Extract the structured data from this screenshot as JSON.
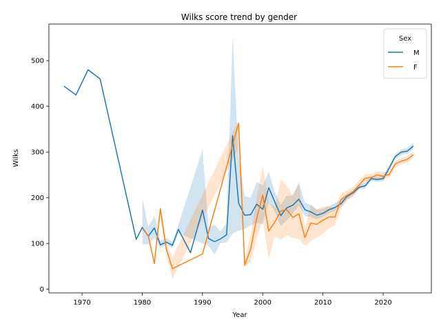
{
  "chart_data": {
    "type": "line",
    "title": "Wilks score trend by gender",
    "xlabel": "Year",
    "ylabel": "Wilks",
    "xlim": [
      1964.5,
      2028
    ],
    "ylim": [
      -8,
      580
    ],
    "xticks": [
      1970,
      1980,
      1990,
      2000,
      2010,
      2020
    ],
    "yticks": [
      0,
      100,
      200,
      300,
      400,
      500
    ],
    "grid": false,
    "legend": {
      "title": "Sex",
      "placement": "top-right"
    },
    "series": [
      {
        "name": "M",
        "color": "#1f77b4",
        "band_color": "#1f77b4",
        "points": [
          [
            1967,
            444
          ],
          [
            1969,
            425
          ],
          [
            1971,
            480
          ],
          [
            1973,
            460
          ],
          [
            1979,
            109
          ],
          [
            1980,
            135
          ],
          [
            1981,
            116
          ],
          [
            1982,
            134
          ],
          [
            1983,
            97
          ],
          [
            1984,
            103
          ],
          [
            1985,
            96
          ],
          [
            1986,
            131
          ],
          [
            1988,
            80
          ],
          [
            1990,
            173
          ],
          [
            1991,
            111
          ],
          [
            1992,
            104
          ],
          [
            1993,
            110
          ],
          [
            1994,
            119
          ],
          [
            1995,
            336
          ],
          [
            1996,
            188
          ],
          [
            1997,
            162
          ],
          [
            1998,
            163
          ],
          [
            1999,
            186
          ],
          [
            2000,
            175
          ],
          [
            2001,
            222
          ],
          [
            2002,
            191
          ],
          [
            2003,
            161
          ],
          [
            2004,
            178
          ],
          [
            2005,
            184
          ],
          [
            2006,
            197
          ],
          [
            2007,
            174
          ],
          [
            2008,
            169
          ],
          [
            2009,
            162
          ],
          [
            2010,
            166
          ],
          [
            2011,
            174
          ],
          [
            2012,
            179
          ],
          [
            2013,
            187
          ],
          [
            2014,
            203
          ],
          [
            2015,
            211
          ],
          [
            2016,
            223
          ],
          [
            2017,
            226
          ],
          [
            2018,
            242
          ],
          [
            2019,
            240
          ],
          [
            2020,
            242
          ],
          [
            2021,
            265
          ],
          [
            2022,
            290
          ],
          [
            2023,
            300
          ],
          [
            2024,
            302
          ],
          [
            2025,
            313
          ]
        ],
        "band": [
          [
            1980,
            98,
            200
          ],
          [
            1981,
            98,
            137
          ],
          [
            1982,
            112,
            160
          ],
          [
            1983,
            89,
            106
          ],
          [
            1984,
            97,
            113
          ],
          [
            1985,
            90,
            103
          ],
          [
            1986,
            123,
            141
          ],
          [
            1990,
            100,
            306
          ],
          [
            1991,
            95,
            135
          ],
          [
            1992,
            76,
            141
          ],
          [
            1993,
            101,
            127
          ],
          [
            1994,
            102,
            145
          ],
          [
            1995,
            122,
            554
          ],
          [
            1996,
            128,
            290
          ],
          [
            1997,
            132,
            204
          ],
          [
            1998,
            140,
            200
          ],
          [
            1999,
            145,
            235
          ],
          [
            2000,
            142,
            227
          ],
          [
            2001,
            190,
            257
          ],
          [
            2002,
            170,
            213
          ],
          [
            2003,
            138,
            185
          ],
          [
            2004,
            150,
            205
          ],
          [
            2005,
            166,
            205
          ],
          [
            2006,
            183,
            234
          ],
          [
            2007,
            160,
            189
          ],
          [
            2008,
            158,
            184
          ],
          [
            2009,
            152,
            174
          ],
          [
            2010,
            158,
            176
          ],
          [
            2011,
            166,
            182
          ],
          [
            2012,
            172,
            188
          ],
          [
            2013,
            180,
            196
          ],
          [
            2014,
            196,
            209
          ],
          [
            2015,
            205,
            217
          ],
          [
            2016,
            218,
            229
          ],
          [
            2017,
            220,
            232
          ],
          [
            2018,
            237,
            248
          ],
          [
            2019,
            235,
            246
          ],
          [
            2020,
            236,
            248
          ],
          [
            2021,
            259,
            271
          ],
          [
            2022,
            284,
            296
          ],
          [
            2023,
            294,
            306
          ],
          [
            2024,
            296,
            309
          ],
          [
            2025,
            306,
            320
          ]
        ]
      },
      {
        "name": "F",
        "color": "#ff7f0e",
        "band_color": "#ff7f0e",
        "points": [
          [
            1980,
            133
          ],
          [
            1981,
            117
          ],
          [
            1982,
            56
          ],
          [
            1983,
            176
          ],
          [
            1984,
            88
          ],
          [
            1985,
            45
          ],
          [
            1990,
            77
          ],
          [
            1996,
            363
          ],
          [
            1997,
            53
          ],
          [
            1998,
            88
          ],
          [
            1999,
            155
          ],
          [
            2000,
            206
          ],
          [
            2001,
            127
          ],
          [
            2002,
            147
          ],
          [
            2003,
            171
          ],
          [
            2004,
            174
          ],
          [
            2005,
            157
          ],
          [
            2006,
            165
          ],
          [
            2007,
            113
          ],
          [
            2008,
            145
          ],
          [
            2009,
            142
          ],
          [
            2010,
            151
          ],
          [
            2011,
            158
          ],
          [
            2012,
            158
          ],
          [
            2013,
            196
          ],
          [
            2014,
            205
          ],
          [
            2015,
            213
          ],
          [
            2016,
            228
          ],
          [
            2017,
            243
          ],
          [
            2018,
            244
          ],
          [
            2019,
            250
          ],
          [
            2020,
            247
          ],
          [
            2021,
            251
          ],
          [
            2022,
            274
          ],
          [
            2023,
            280
          ],
          [
            2024,
            284
          ],
          [
            2025,
            294
          ]
        ],
        "band": [
          [
            1983,
            150,
            190
          ],
          [
            1984,
            78,
            98
          ],
          [
            1985,
            22,
            70
          ],
          [
            1996,
            310,
            370
          ],
          [
            1997,
            48,
            62
          ],
          [
            1998,
            60,
            120
          ],
          [
            1999,
            110,
            200
          ],
          [
            2000,
            150,
            271
          ],
          [
            2001,
            65,
            190
          ],
          [
            2002,
            115,
            180
          ],
          [
            2003,
            108,
            240
          ],
          [
            2004,
            118,
            226
          ],
          [
            2005,
            112,
            205
          ],
          [
            2006,
            110,
            230
          ],
          [
            2007,
            95,
            135
          ],
          [
            2008,
            105,
            185
          ],
          [
            2009,
            113,
            175
          ],
          [
            2010,
            122,
            181
          ],
          [
            2011,
            133,
            181
          ],
          [
            2012,
            140,
            178
          ],
          [
            2013,
            175,
            210
          ],
          [
            2014,
            194,
            216
          ],
          [
            2015,
            202,
            224
          ],
          [
            2016,
            219,
            238
          ],
          [
            2017,
            234,
            252
          ],
          [
            2018,
            237,
            252
          ],
          [
            2019,
            241,
            258
          ],
          [
            2020,
            239,
            256
          ],
          [
            2021,
            244,
            259
          ],
          [
            2022,
            266,
            281
          ],
          [
            2023,
            273,
            287
          ],
          [
            2024,
            277,
            292
          ],
          [
            2025,
            287,
            301
          ]
        ]
      }
    ]
  }
}
